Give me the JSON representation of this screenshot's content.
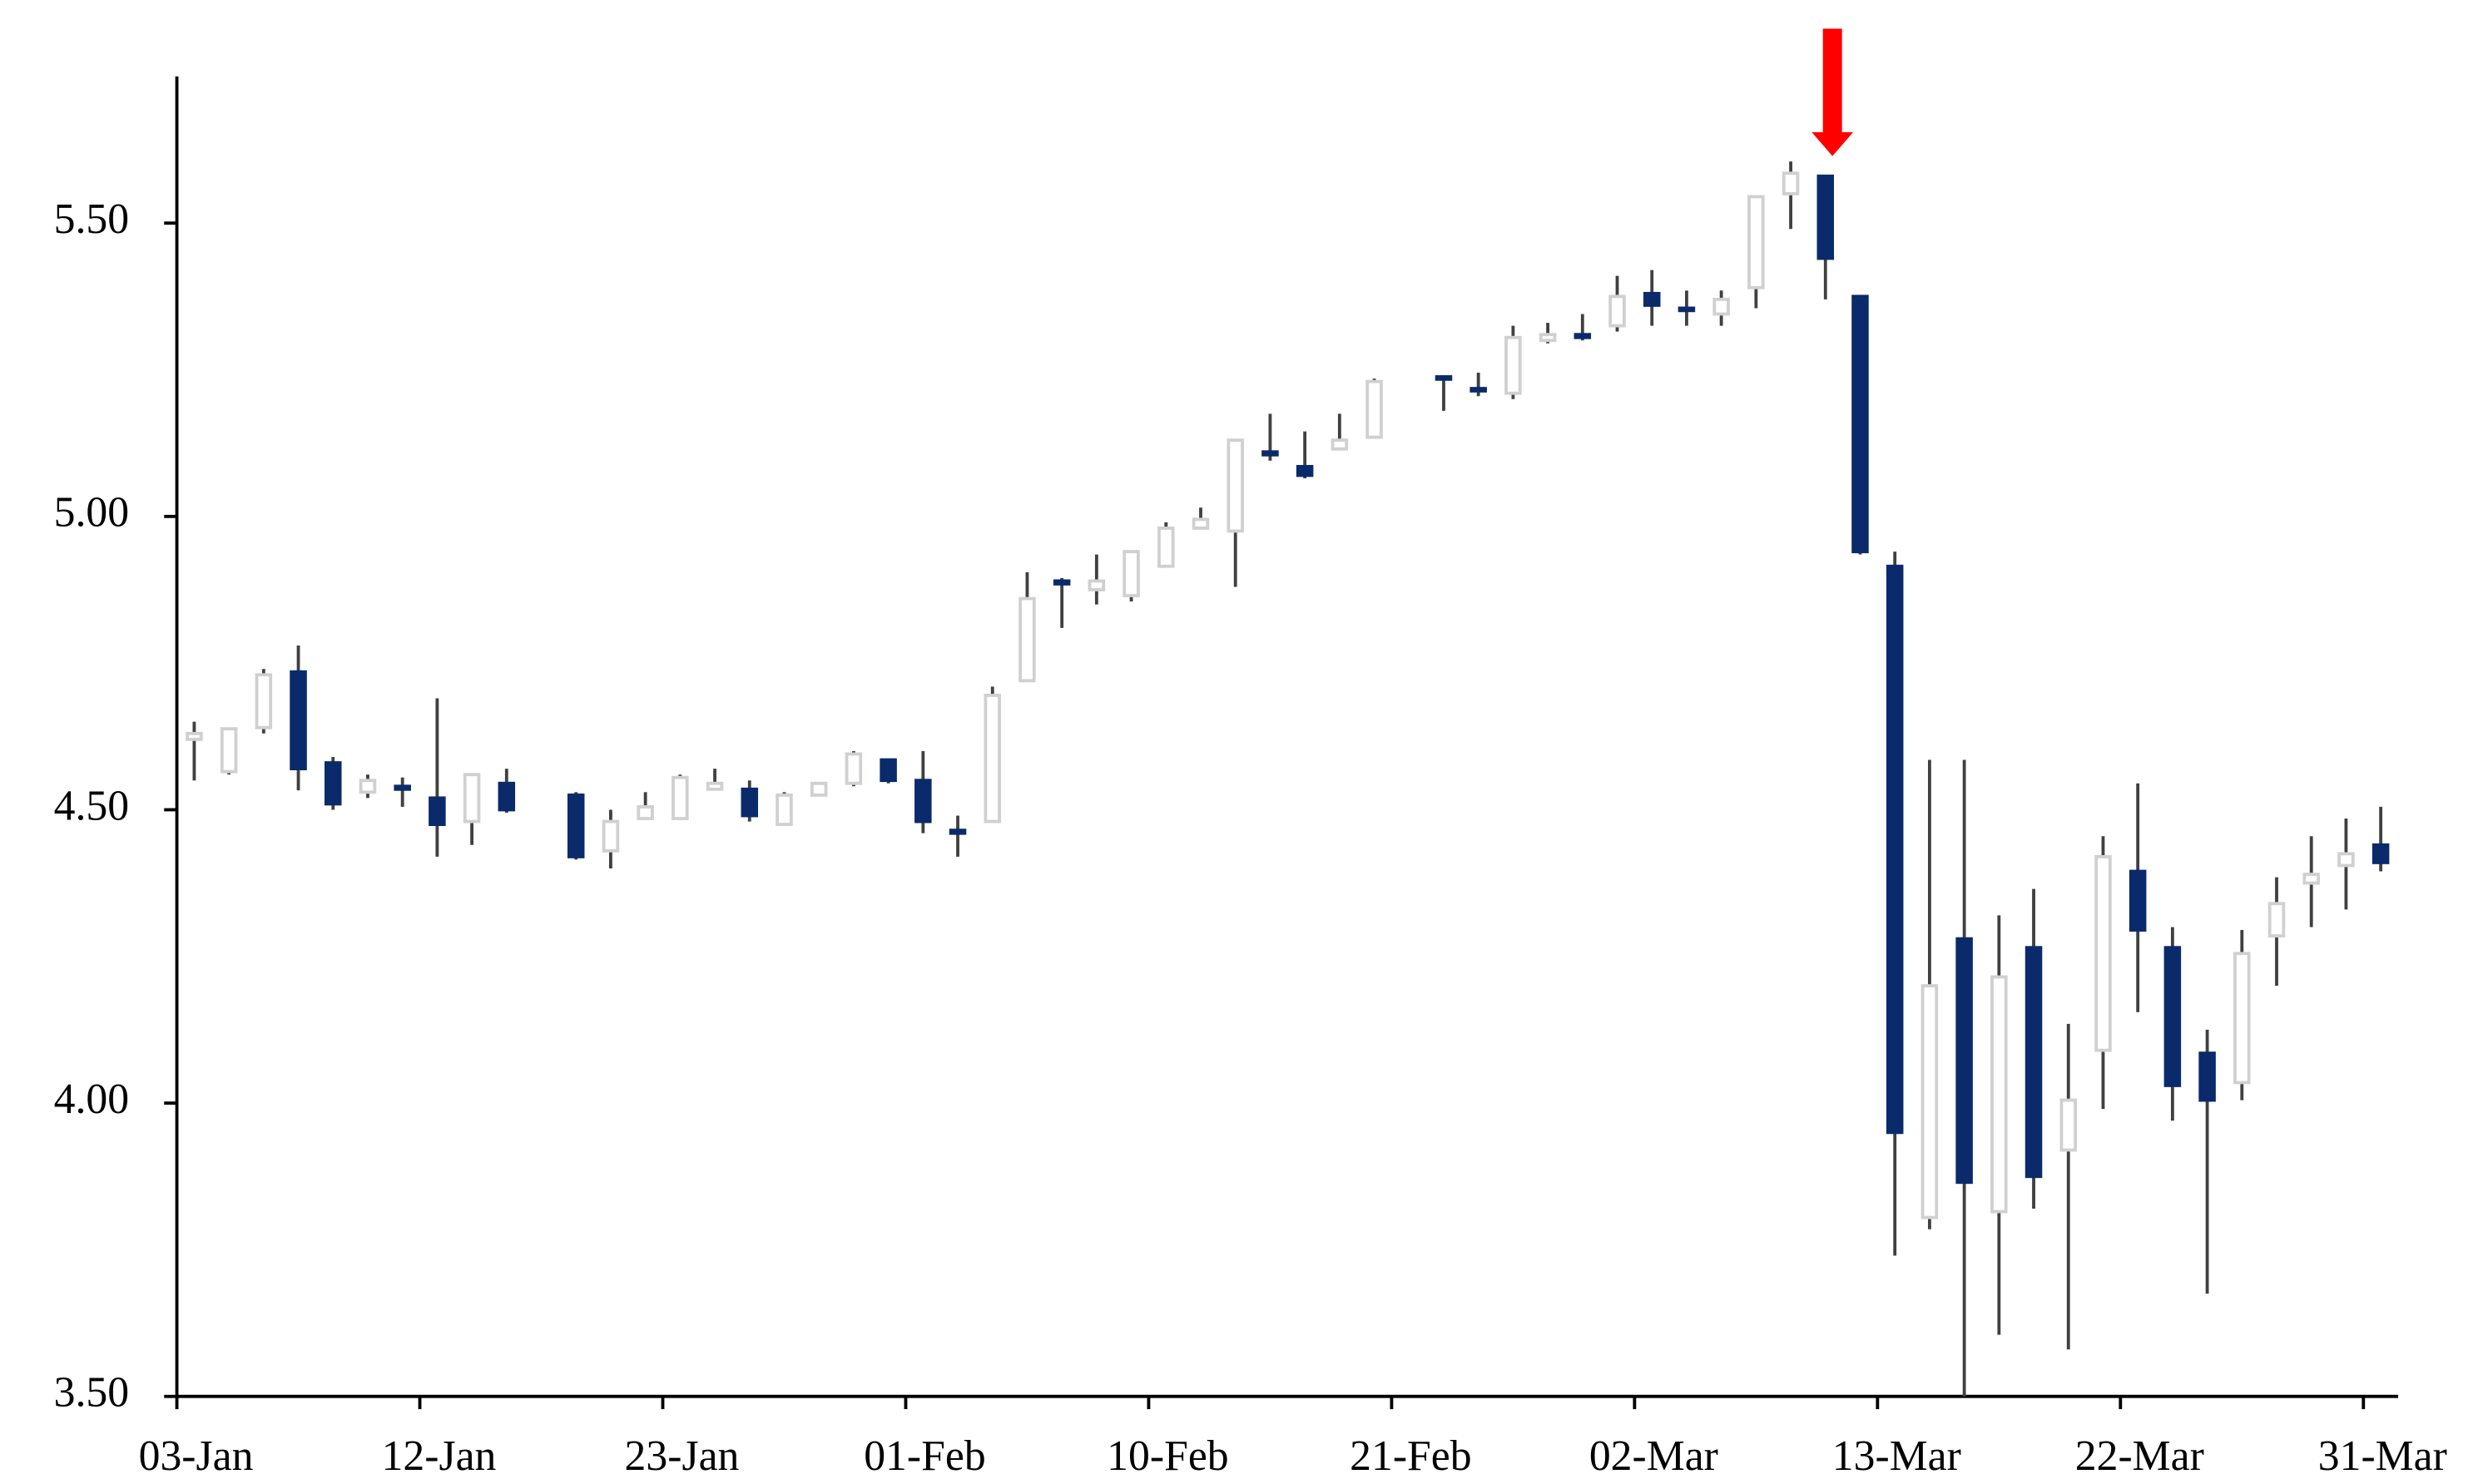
{
  "chart_data": {
    "type": "candlestick",
    "categories": [
      "03-Jan",
      null,
      null,
      null,
      null,
      null,
      null,
      "12-Jan",
      null,
      null,
      null,
      null,
      null,
      null,
      "23-Jan",
      null,
      null,
      null,
      null,
      null,
      null,
      "01-Feb",
      null,
      null,
      null,
      null,
      null,
      null,
      "10-Feb",
      null,
      null,
      null,
      null,
      null,
      null,
      "21-Feb",
      null,
      null,
      null,
      null,
      null,
      null,
      "02-Mar",
      null,
      null,
      null,
      null,
      null,
      null,
      "13-Mar",
      null,
      null,
      null,
      null,
      null,
      null,
      "22-Mar",
      null,
      null,
      null,
      null,
      null,
      null,
      "31-Mar"
    ],
    "open": [
      4.62,
      4.565,
      4.64,
      4.735,
      4.58,
      4.53,
      4.54,
      4.52,
      4.48,
      4.545,
      null,
      4.525,
      4.43,
      4.485,
      4.485,
      4.535,
      4.535,
      4.475,
      4.525,
      4.545,
      4.585,
      4.55,
      4.465,
      4.48,
      4.72,
      4.89,
      4.875,
      4.865,
      4.915,
      4.98,
      4.975,
      5.11,
      5.085,
      5.115,
      5.135,
      null,
      5.238,
      5.218,
      5.21,
      5.3,
      5.31,
      5.325,
      5.38,
      5.355,
      5.345,
      5.39,
      5.55,
      5.58,
      5.375,
      4.915,
      3.805,
      4.28,
      3.815,
      4.265,
      3.92,
      4.09,
      4.395,
      4.265,
      4.085,
      4.035,
      4.285,
      4.375,
      4.405,
      4.44
    ],
    "high": [
      4.65,
      4.64,
      4.74,
      4.78,
      4.59,
      4.56,
      4.555,
      4.69,
      4.56,
      4.57,
      null,
      4.53,
      4.5,
      4.53,
      4.56,
      4.57,
      4.55,
      4.53,
      4.545,
      4.6,
      4.585,
      4.6,
      4.49,
      4.71,
      4.905,
      4.895,
      4.935,
      4.94,
      4.99,
      5.015,
      5.13,
      5.175,
      5.145,
      5.175,
      5.235,
      null,
      5.24,
      5.245,
      5.325,
      5.33,
      5.345,
      5.41,
      5.42,
      5.385,
      5.385,
      5.545,
      5.605,
      5.58,
      5.375,
      4.94,
      4.585,
      4.585,
      4.32,
      4.365,
      4.135,
      4.455,
      4.545,
      4.3,
      4.125,
      4.295,
      4.385,
      4.455,
      4.485,
      4.505
    ],
    "low": [
      4.55,
      4.56,
      4.63,
      4.533,
      4.5,
      4.52,
      4.505,
      4.42,
      4.44,
      4.495,
      null,
      4.415,
      4.4,
      4.485,
      4.485,
      4.535,
      4.48,
      4.475,
      4.525,
      4.54,
      4.545,
      4.46,
      4.42,
      4.48,
      4.72,
      4.81,
      4.85,
      4.855,
      4.915,
      4.98,
      4.88,
      5.095,
      5.065,
      5.115,
      5.135,
      null,
      5.18,
      5.205,
      5.2,
      5.295,
      5.3,
      5.315,
      5.325,
      5.325,
      5.325,
      5.355,
      5.49,
      5.37,
      4.935,
      3.74,
      3.785,
      3.5,
      3.605,
      3.82,
      3.58,
      3.99,
      4.155,
      3.97,
      3.675,
      4.005,
      4.2,
      4.3,
      4.33,
      4.395
    ],
    "close": [
      4.63,
      4.638,
      4.73,
      4.57,
      4.51,
      4.55,
      4.535,
      4.475,
      4.56,
      4.5,
      null,
      4.42,
      4.48,
      4.505,
      4.555,
      4.545,
      4.49,
      4.525,
      4.545,
      4.595,
      4.55,
      4.48,
      4.46,
      4.695,
      4.86,
      4.885,
      4.89,
      4.94,
      4.98,
      4.995,
      5.13,
      5.105,
      5.07,
      5.13,
      5.23,
      null,
      5.235,
      5.215,
      5.305,
      5.31,
      5.305,
      5.375,
      5.36,
      5.352,
      5.37,
      5.545,
      5.585,
      5.44,
      4.94,
      3.95,
      4.2,
      3.865,
      4.215,
      3.875,
      4.005,
      4.42,
      4.295,
      4.03,
      4.005,
      4.255,
      4.34,
      4.39,
      4.425,
      4.41
    ],
    "up_color": "#ffffff",
    "up_edge_color": "#d0d0d0",
    "down_color": "#0a2a6b",
    "wick_color": "#404040",
    "ylim": [
      3.5,
      5.75
    ],
    "yticks": [
      {
        "value": 3.5,
        "label": "3.50"
      },
      {
        "value": 4.0,
        "label": "4.00"
      },
      {
        "value": 4.5,
        "label": "4.50"
      },
      {
        "value": 5.0,
        "label": "5.00"
      },
      {
        "value": 5.5,
        "label": "5.50"
      }
    ],
    "grid": false
  }
}
